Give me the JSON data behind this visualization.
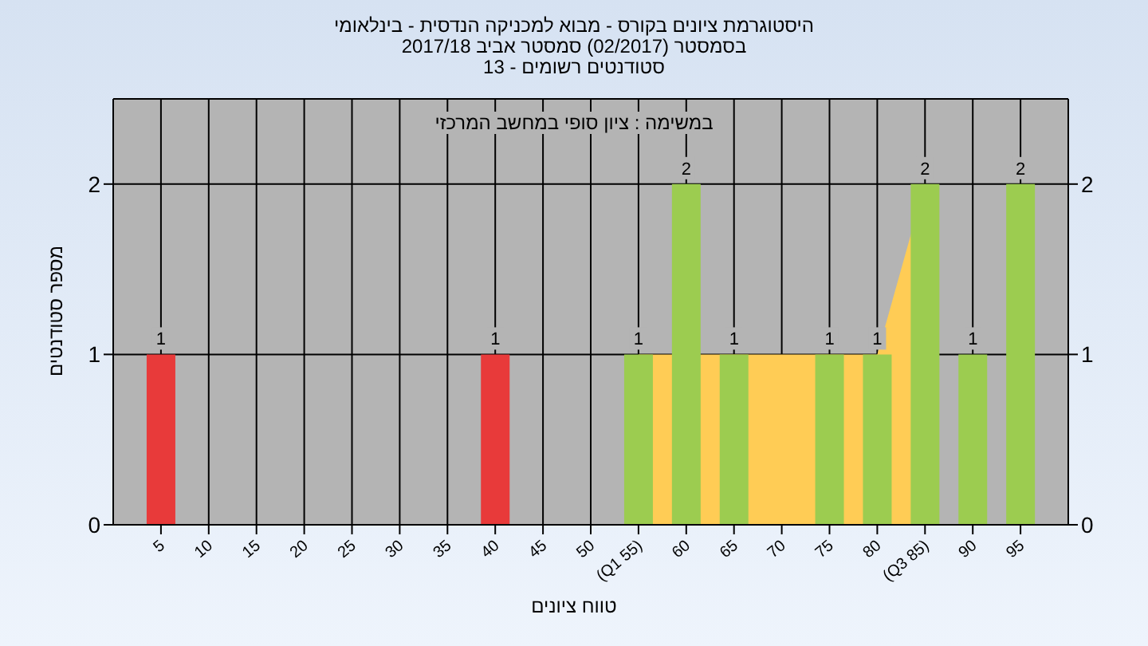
{
  "chart_data": {
    "type": "bar",
    "title": "היסטוגרמת ציונים בקורס - מבוא למכניקה הנדסית - בינלאומי",
    "subtitle": "בסמסטר  (02/2017)  סמסטר אביב 2017/18\nסטודנטים רשומים - 13",
    "xlabel": "טווח ציונים",
    "ylabel": "מספר סטודנטים",
    "annotations": [
      "במשימה : ציון סופי במחשב המרכזי"
    ],
    "x": [
      5,
      40,
      55,
      60,
      65,
      75,
      80,
      85,
      90,
      95
    ],
    "values": [
      1,
      1,
      1,
      2,
      1,
      1,
      1,
      2,
      1,
      2
    ],
    "value_labels": [
      "1",
      "1",
      "1",
      "2",
      "1",
      "1",
      "1",
      "2",
      "1",
      "2"
    ],
    "colors": [
      "#e83a3a",
      "#e83a3a",
      "#9ccc50",
      "#9ccc50",
      "#9ccc50",
      "#9ccc50",
      "#9ccc50",
      "#9ccc50",
      "#9ccc50",
      "#9ccc50"
    ],
    "series": [
      {
        "type": "area",
        "color": "#ffcc55",
        "x": [
          55,
          60,
          65,
          70,
          75,
          80,
          85
        ],
        "values": [
          1,
          null,
          1,
          1,
          1,
          1,
          2
        ]
      }
    ],
    "xlim": [
      0,
      100
    ],
    "xticks": [
      5,
      10,
      15,
      20,
      25,
      30,
      35,
      40,
      45,
      50,
      {
        "value": 55,
        "label": "(Q1 55)"
      },
      60,
      65,
      70,
      75,
      80,
      {
        "value": 85,
        "label": "(Q3 85)"
      },
      90,
      95
    ],
    "ylim": [
      0,
      2.5
    ],
    "yticks": [
      0,
      1,
      2
    ],
    "y2lim": [
      0,
      2.5
    ],
    "y2ticks": [
      0,
      1,
      2
    ],
    "grid": true
  }
}
